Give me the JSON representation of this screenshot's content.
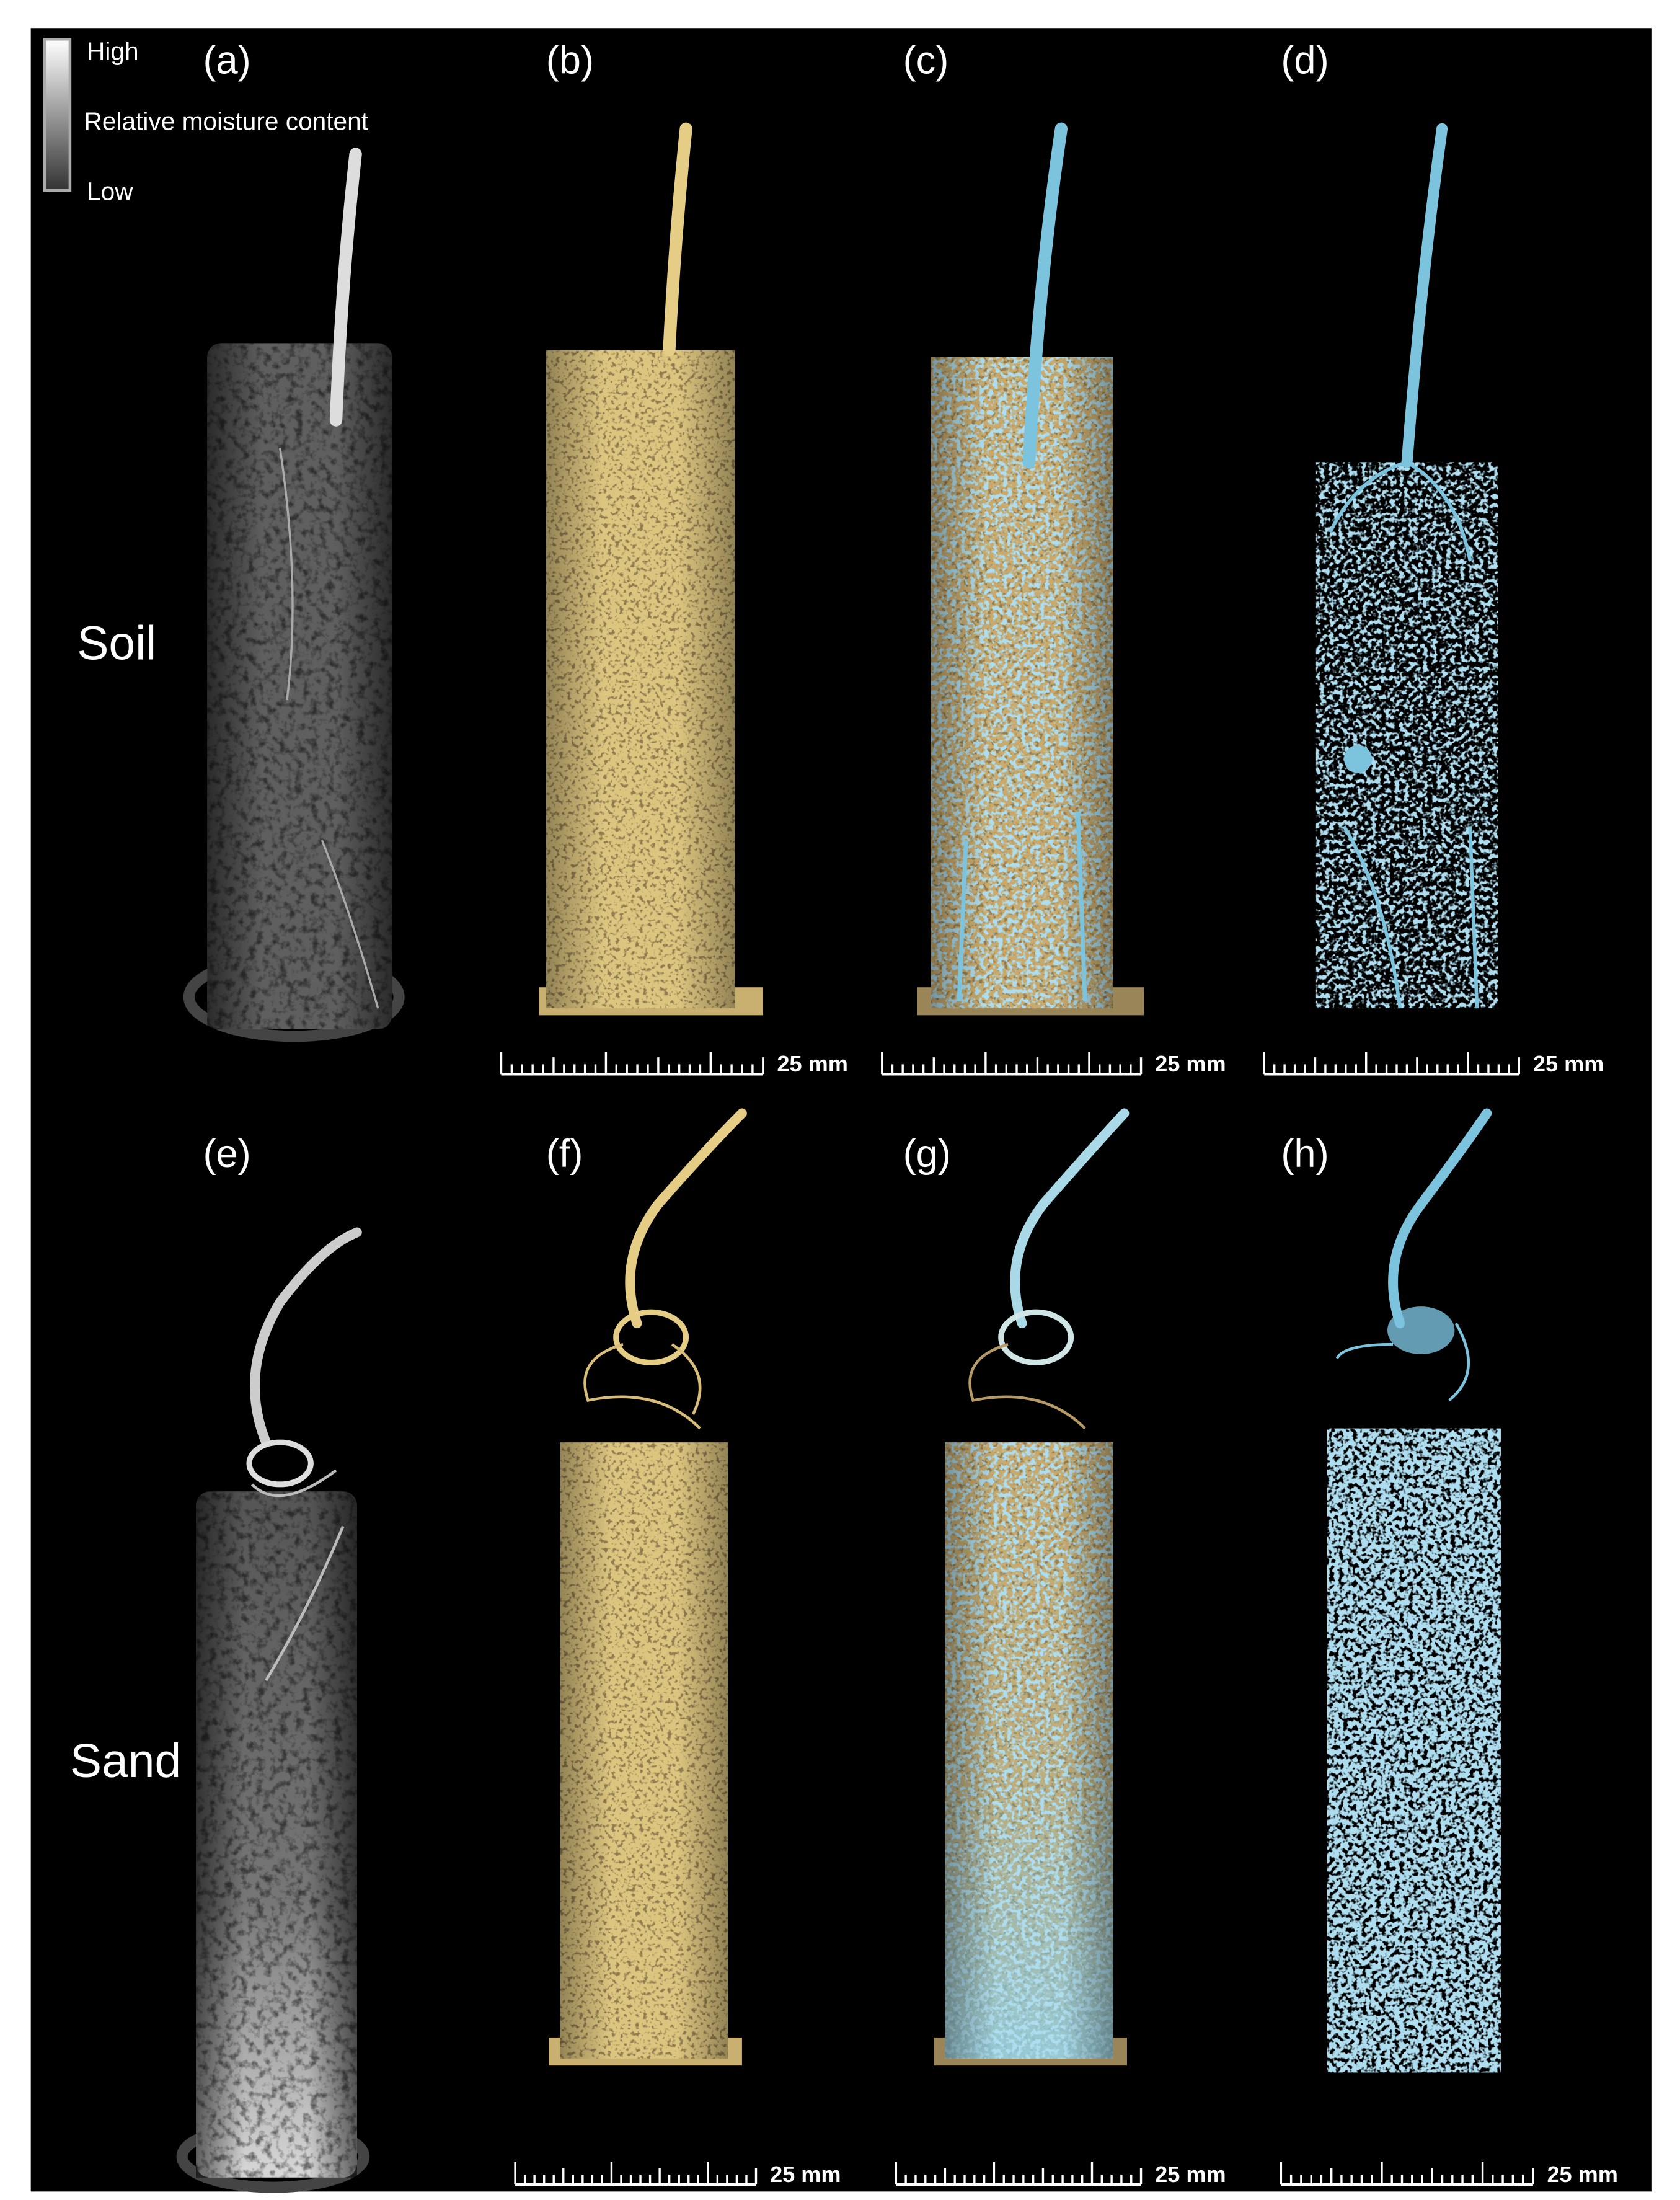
{
  "legend": {
    "high": "High",
    "title": "Relative moisture content",
    "low": "Low"
  },
  "panels": [
    "(a)",
    "(b)",
    "(c)",
    "(d)",
    "(e)",
    "(f)",
    "(g)",
    "(h)"
  ],
  "rows": [
    "Soil",
    "Sand"
  ],
  "scale_bars": [
    "25 mm",
    "25 mm",
    "25 mm",
    "25 mm",
    "25 mm",
    "25 mm"
  ]
}
